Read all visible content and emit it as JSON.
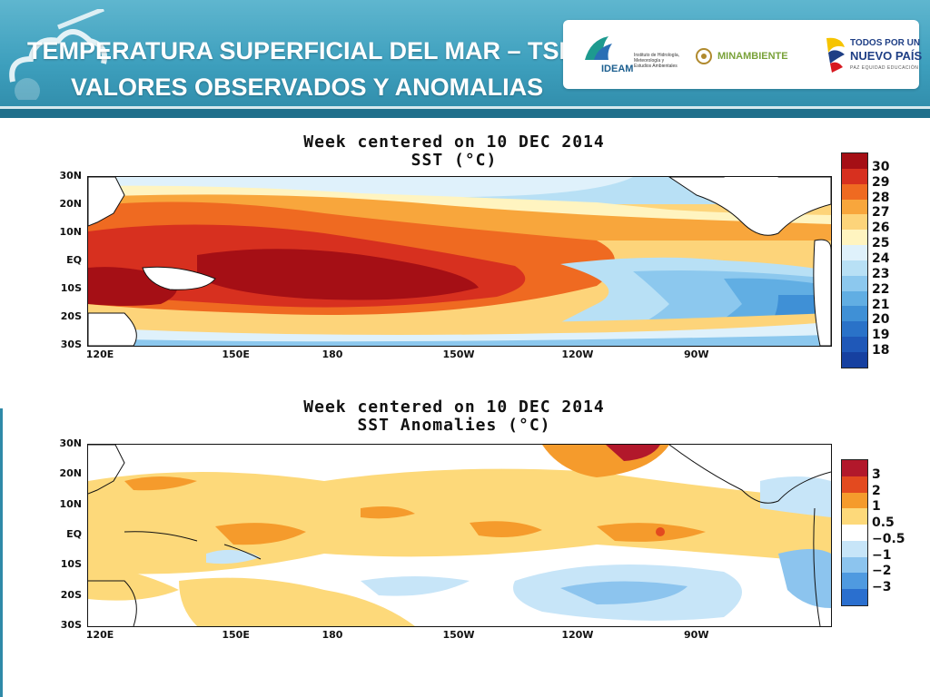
{
  "header": {
    "title_line1": "TEMPERATURA SUPERFICIAL DEL MAR – TSM",
    "title_line2": "VALORES OBSERVADOS Y ANOMALIAS",
    "logos": {
      "ideam_name": "IDEAM",
      "ideam_lines": [
        "Instituto de Hidrología,",
        "Meteorología y",
        "Estudios Ambientales"
      ],
      "minambiente": "MINAMBIENTE",
      "todos_line1": "TODOS POR UN",
      "todos_line2": "NUEVO PAÍS",
      "todos_line3": "PAZ  EQUIDAD  EDUCACIÓN"
    }
  },
  "chart1": {
    "title_line1": "Week centered on 10 DEC 2014",
    "title_line2": "SST (°C)",
    "y_ticks": [
      "30N",
      "20N",
      "10N",
      "EQ",
      "10S",
      "20S",
      "30S"
    ],
    "x_ticks": [
      "120E",
      "150E",
      "180",
      "150W",
      "120W",
      "90W"
    ],
    "colorbar_labels": [
      "30",
      "29",
      "28",
      "27",
      "26",
      "25",
      "24",
      "23",
      "22",
      "21",
      "20",
      "19",
      "18"
    ]
  },
  "chart2": {
    "title_line1": "Week centered on 10 DEC 2014",
    "title_line2": "SST Anomalies (°C)",
    "y_ticks": [
      "30N",
      "20N",
      "10N",
      "EQ",
      "10S",
      "20S",
      "30S"
    ],
    "x_ticks": [
      "120E",
      "150E",
      "180",
      "150W",
      "120W",
      "90W"
    ],
    "colorbar_labels": [
      "3",
      "2",
      "1",
      "0.5",
      "−0.5",
      "−1",
      "−2",
      "−3"
    ]
  },
  "colors": {
    "header_bg": "#3d9fbd",
    "sst_scale": [
      "#a50f15",
      "#d7301f",
      "#ef6a21",
      "#f8a63c",
      "#fdd47a",
      "#fff4c0",
      "#dff1fb",
      "#b8e0f5",
      "#8cc8ee",
      "#61aee3",
      "#3f90d6",
      "#2a72c8",
      "#1f58b8",
      "#1640a0"
    ],
    "anom_scale": [
      "#b2182b",
      "#e34a1f",
      "#f59b2c",
      "#fdd97a",
      "#ffffff",
      "#c7e5f8",
      "#8cc4ee",
      "#4f9ae0",
      "#2a6fcf"
    ]
  }
}
